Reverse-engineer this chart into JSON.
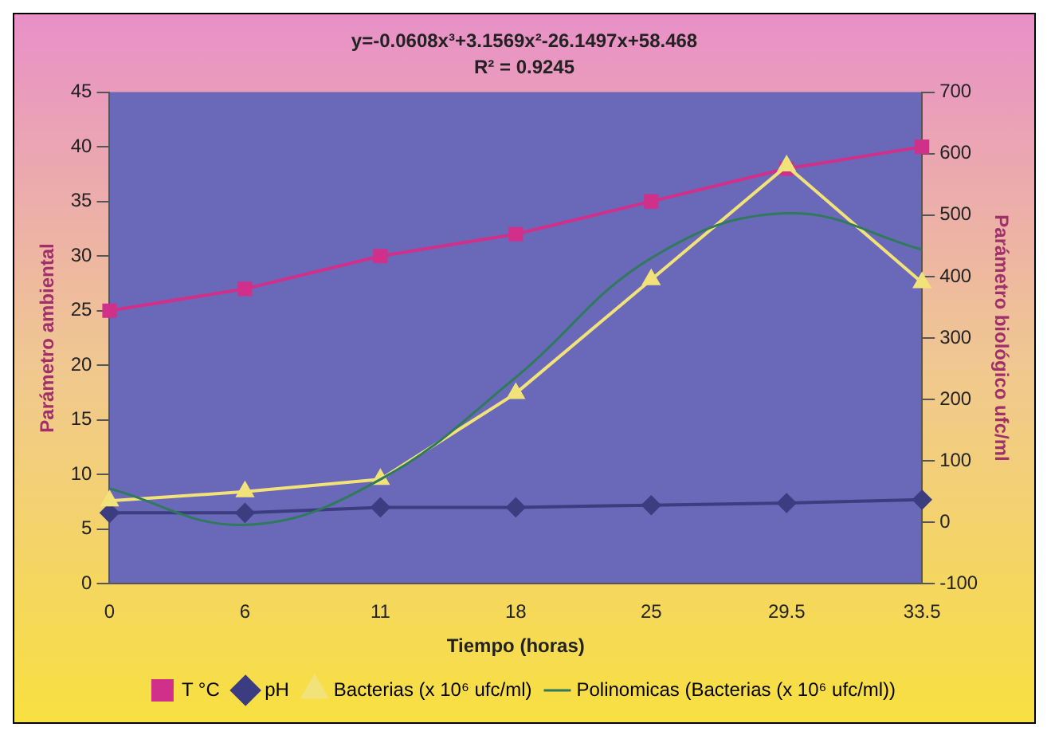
{
  "chart_data": {
    "type": "line",
    "title": "y=-0.0608x³+3.1569x²-26.1497x+58.468",
    "subtitle": "R² = 0.9245",
    "xlabel": "Tiempo (horas)",
    "ylabel": "Parámetro ambiental",
    "y2label": "Parámetro biológico ufc/ml",
    "categories": [
      "0",
      "6",
      "11",
      "18",
      "25",
      "29.5",
      "33.5"
    ],
    "series": [
      {
        "name": "T °C",
        "color": "#d0308a",
        "marker": "square",
        "values": [
          25,
          27,
          30,
          32,
          35,
          38,
          40
        ]
      },
      {
        "name": "pH",
        "color": "#3c3c80",
        "marker": "diamond",
        "values": [
          6.5,
          6.5,
          7,
          7,
          7.2,
          7.4,
          7.7
        ]
      },
      {
        "name": "Bacterias (x 10⁶ ufc/ml)",
        "color": "#f2e27a",
        "marker": "triangle",
        "axis": "y2",
        "values": [
          35,
          50,
          70,
          210,
          395,
          580,
          390
        ]
      },
      {
        "name": "Polinomicas (Bacterias (x 10⁶ ufc/ml))",
        "color": "#2e7a5a",
        "marker": "none",
        "axis": "y2",
        "values": [
          55,
          -4,
          70,
          236,
          430,
          503,
          444
        ]
      }
    ],
    "ylim": [
      0,
      45
    ],
    "yticks": [
      0,
      5,
      10,
      15,
      20,
      25,
      30,
      35,
      40,
      45
    ],
    "y2lim": [
      -100,
      700
    ],
    "y2ticks": [
      -100,
      0,
      100,
      200,
      300,
      400,
      500,
      600,
      700
    ],
    "grid": false,
    "legend": "bottom"
  }
}
